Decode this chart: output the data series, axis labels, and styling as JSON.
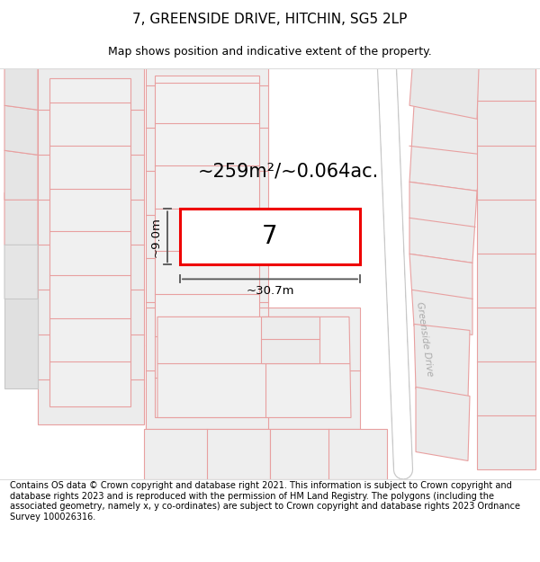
{
  "title": "7, GREENSIDE DRIVE, HITCHIN, SG5 2LP",
  "subtitle": "Map shows position and indicative extent of the property.",
  "area_text": "~259m²/~0.064ac.",
  "property_number": "7",
  "width_label": "~30.7m",
  "height_label": "~9.0m",
  "footer_text": "Contains OS data © Crown copyright and database right 2021. This information is subject to Crown copyright and database rights 2023 and is reproduced with the permission of HM Land Registry. The polygons (including the associated geometry, namely x, y co-ordinates) are subject to Crown copyright and database rights 2023 Ordnance Survey 100026316.",
  "bg_color": "#ffffff",
  "map_bg": "#f7f5f5",
  "plot_edge_color": "#ee0000",
  "road_label": "Greenside Drive",
  "pink": "#e8a0a0",
  "pink2": "#f0b0b0",
  "gray_outline": "#c8c8c8",
  "block_fill": "#ebebeb",
  "dim_color": "#555555"
}
